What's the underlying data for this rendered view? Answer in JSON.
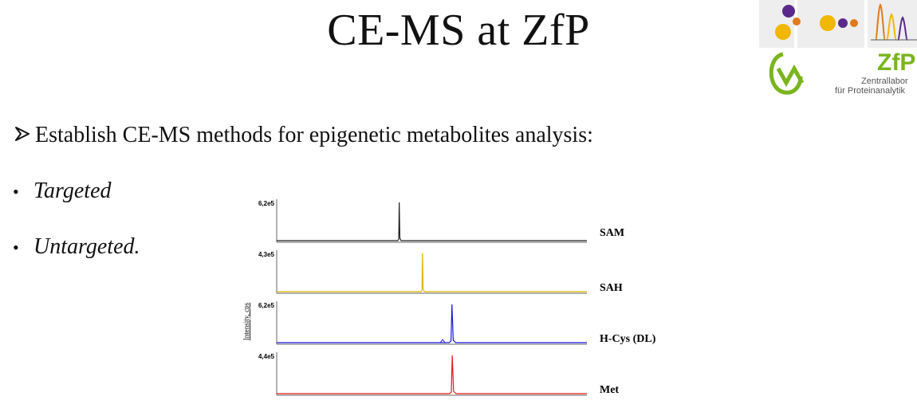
{
  "slide": {
    "title": "CE-MS at ZfP",
    "main_bullet": "Establish CE-MS methods for epigenetic metabolites analysis:",
    "sub_bullets": [
      "Targeted",
      "Untargeted."
    ]
  },
  "logo": {
    "name": "ZfP",
    "line1": "Zentrallabor",
    "line2": "für Proteinanalytik"
  },
  "chart_data": {
    "type": "line",
    "ylabel": "Intensity, cps",
    "panels": [
      {
        "name": "SAM",
        "max_label": "6,2e5",
        "color": "#222222",
        "peak_x": 0.395,
        "peak_height": 1.0,
        "peak_width": 0.003,
        "secondary": []
      },
      {
        "name": "SAH",
        "max_label": "4,3e5",
        "color": "#e0b400",
        "peak_x": 0.47,
        "peak_height": 1.0,
        "peak_width": 0.003,
        "secondary": []
      },
      {
        "name": "H-Cys (DL)",
        "max_label": "6,2e5",
        "color": "#1a1ad6",
        "peak_x": 0.565,
        "peak_height": 1.0,
        "peak_width": 0.006,
        "secondary": [
          {
            "x": 0.535,
            "h": 0.08
          }
        ]
      },
      {
        "name": "Met",
        "max_label": "4,4e5",
        "color": "#e01a1a",
        "peak_x": 0.566,
        "peak_height": 1.0,
        "peak_width": 0.006,
        "secondary": []
      }
    ]
  }
}
